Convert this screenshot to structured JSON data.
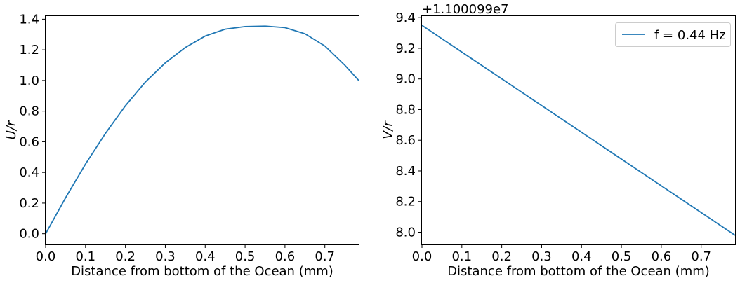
{
  "chart_data": [
    {
      "type": "line",
      "xlabel": "Distance from bottom of the Ocean (mm)",
      "ylabel": "U/r",
      "xlim": [
        0.0,
        0.785
      ],
      "ylim": [
        -0.07,
        1.42
      ],
      "xticks": [
        "0.0",
        "0.1",
        "0.2",
        "0.3",
        "0.4",
        "0.5",
        "0.6",
        "0.7"
      ],
      "yticks": [
        "0.0",
        "0.2",
        "0.4",
        "0.6",
        "0.8",
        "1.0",
        "1.2",
        "1.4"
      ],
      "grid": false,
      "series": [
        {
          "color": "#1f77b4",
          "x": [
            0.0,
            0.05,
            0.1,
            0.15,
            0.2,
            0.25,
            0.3,
            0.35,
            0.4,
            0.45,
            0.5,
            0.55,
            0.6,
            0.65,
            0.7,
            0.75,
            0.785
          ],
          "y": [
            0.0,
            0.235,
            0.455,
            0.655,
            0.835,
            0.99,
            1.115,
            1.215,
            1.29,
            1.335,
            1.352,
            1.355,
            1.345,
            1.305,
            1.225,
            1.1,
            1.0
          ]
        }
      ]
    },
    {
      "type": "line",
      "xlabel": "Distance from bottom of the Ocean (mm)",
      "ylabel": "V/r",
      "offset_text": "+1.100099e7",
      "xlim": [
        0.0,
        0.785
      ],
      "ylim": [
        7.92,
        9.41
      ],
      "xticks": [
        "0.0",
        "0.1",
        "0.2",
        "0.3",
        "0.4",
        "0.5",
        "0.6",
        "0.7"
      ],
      "yticks": [
        "8.0",
        "8.2",
        "8.4",
        "8.6",
        "8.8",
        "9.0",
        "9.2",
        "9.4"
      ],
      "grid": false,
      "legend_position": "top-right",
      "series": [
        {
          "name": "f = 0.44 Hz",
          "color": "#1f77b4",
          "x": [
            0.0,
            0.785
          ],
          "y": [
            9.35,
            7.98
          ]
        }
      ]
    }
  ]
}
